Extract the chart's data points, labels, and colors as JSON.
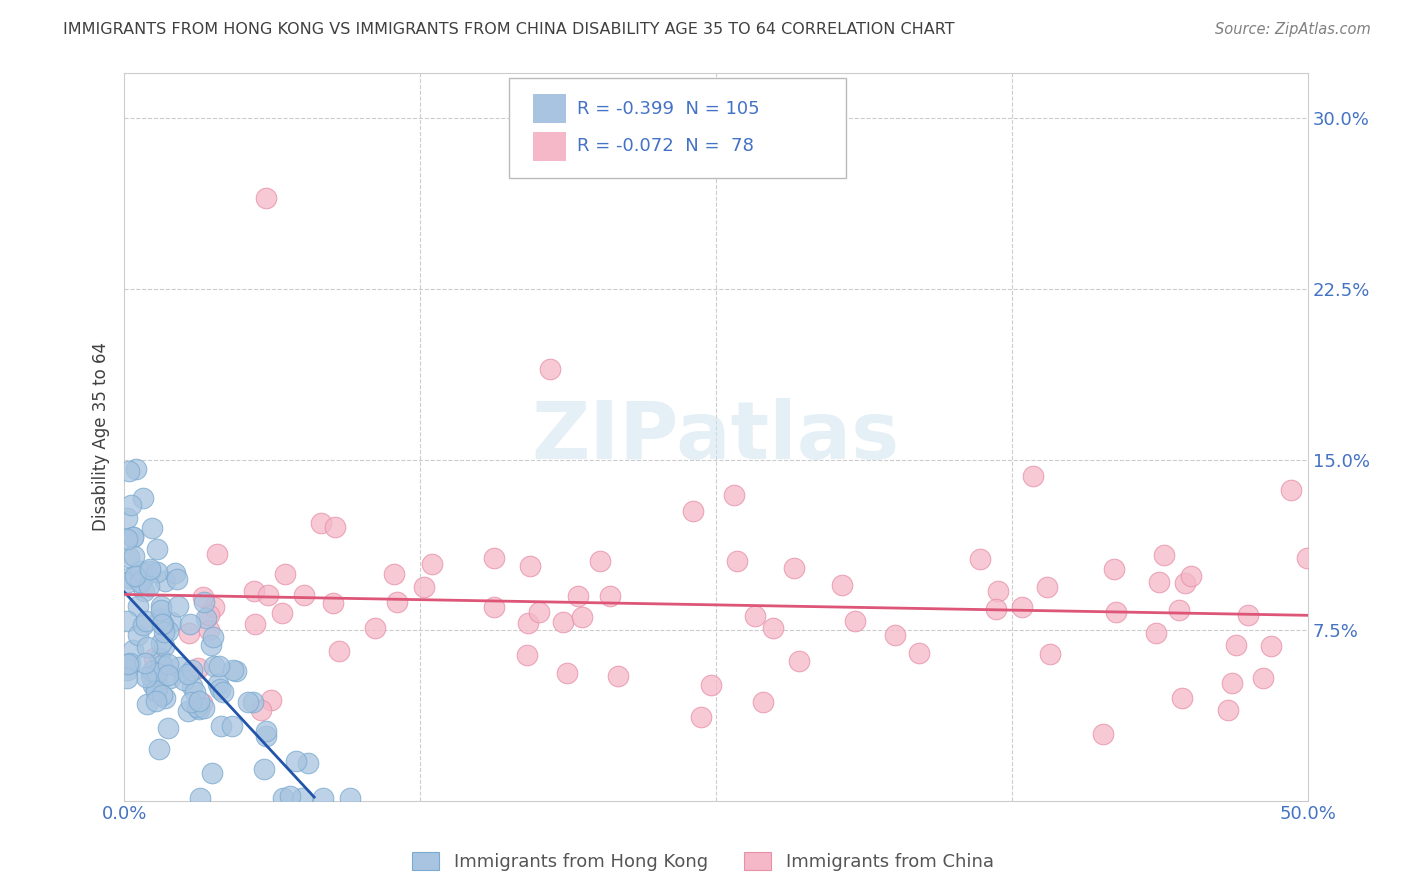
{
  "title": "IMMIGRANTS FROM HONG KONG VS IMMIGRANTS FROM CHINA DISABILITY AGE 35 TO 64 CORRELATION CHART",
  "source": "Source: ZipAtlas.com",
  "ylabel": "Disability Age 35 to 64",
  "xlim": [
    0.0,
    0.5
  ],
  "ylim": [
    0.0,
    0.32
  ],
  "xtick_vals": [
    0.0,
    0.125,
    0.25,
    0.375,
    0.5
  ],
  "xticklabels": [
    "0.0%",
    "",
    "",
    "",
    "50.0%"
  ],
  "ytick_vals": [
    0.0,
    0.075,
    0.15,
    0.225,
    0.3
  ],
  "yticklabels": [
    "",
    "7.5%",
    "15.0%",
    "22.5%",
    "30.0%"
  ],
  "hk_R": -0.399,
  "hk_N": 105,
  "cn_R": -0.072,
  "cn_N": 78,
  "hk_color": "#a8c4e0",
  "cn_color": "#f4b8c8",
  "hk_line_color": "#2255aa",
  "cn_line_color": "#dd5577",
  "hk_edge_color": "#7aaad0",
  "cn_edge_color": "#e890a8",
  "background_color": "#ffffff",
  "grid_color": "#cccccc",
  "title_color": "#404040",
  "legend_label_hk": "Immigrants from Hong Kong",
  "legend_label_cn": "Immigrants from China",
  "tick_label_color": "#4472c4",
  "watermark_color": "#d0e4f0",
  "source_color": "#808080"
}
